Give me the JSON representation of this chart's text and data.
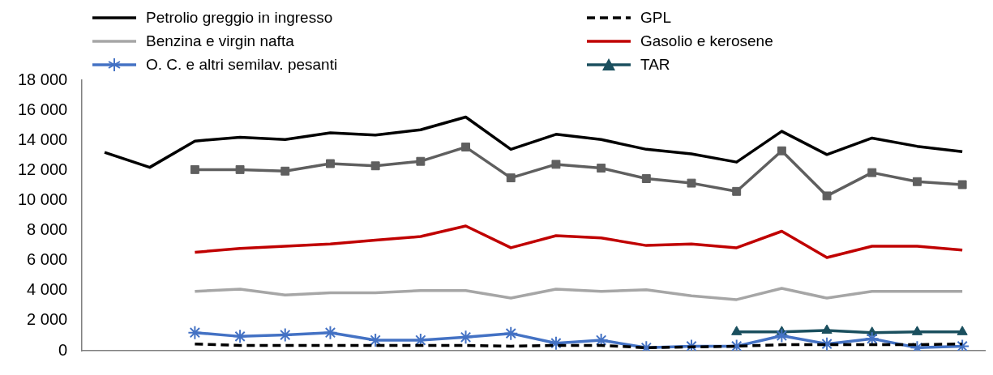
{
  "chart_data": {
    "type": "line",
    "categories": [
      null,
      null,
      null,
      null,
      null,
      null,
      null,
      null,
      null,
      null,
      null,
      null,
      null,
      null,
      null,
      null,
      null,
      null,
      null,
      null
    ],
    "series": [
      {
        "name": "Petrolio greggio in ingresso",
        "color": "#000000",
        "marker": "none",
        "values": [
          13200,
          12200,
          13950,
          14200,
          14050,
          14500,
          14350,
          14700,
          15550,
          13400,
          14400,
          14050,
          13400,
          13100,
          12550,
          14600,
          13050,
          14150,
          13600,
          13250
        ]
      },
      {
        "name": "GPL",
        "color": "#000000",
        "marker": "none",
        "line_style": "dashed",
        "values": [
          null,
          null,
          450,
          350,
          350,
          350,
          350,
          350,
          350,
          300,
          350,
          350,
          200,
          250,
          300,
          400,
          400,
          400,
          400,
          450
        ]
      },
      {
        "name": "Benzina e virgin nafta",
        "color": "#a6a6a6",
        "marker": "none",
        "values": [
          null,
          null,
          3950,
          4100,
          3700,
          3850,
          3850,
          4000,
          4000,
          3500,
          4100,
          3950,
          4050,
          3650,
          3400,
          4150,
          3500,
          3950,
          3950,
          3950
        ]
      },
      {
        "name": "Gasolio e kerosene",
        "color": "#c00000",
        "marker": "none",
        "values": [
          null,
          null,
          6550,
          6800,
          6950,
          7100,
          7350,
          7600,
          8300,
          6850,
          7650,
          7500,
          7000,
          7100,
          6850,
          7950,
          6200,
          6950,
          6950,
          6700
        ]
      },
      {
        "name": "O. C. e altri semilav. pesanti",
        "color": "#4472c4",
        "marker": "cross",
        "values": [
          null,
          null,
          1200,
          950,
          1050,
          1200,
          700,
          700,
          900,
          1150,
          500,
          700,
          200,
          300,
          300,
          1000,
          450,
          800,
          200,
          300
        ]
      },
      {
        "name": "TAR",
        "color": "#1a4f5e",
        "marker": "triangle",
        "values": [
          null,
          null,
          null,
          null,
          null,
          null,
          null,
          null,
          null,
          null,
          null,
          null,
          null,
          null,
          1250,
          1250,
          1350,
          1200,
          1250,
          1250
        ]
      },
      {
        "color": "#5f5f5f",
        "marker": "square",
        "values": [
          null,
          null,
          12050,
          12050,
          11950,
          12450,
          12300,
          12600,
          13550,
          11500,
          12400,
          12150,
          11450,
          11150,
          10600,
          13300,
          10300,
          11850,
          11250,
          11050
        ]
      }
    ],
    "ylim": [
      0,
      18000
    ],
    "yticks": [
      {
        "value": 0,
        "label": "0"
      },
      {
        "value": 2000,
        "label": "2 000"
      },
      {
        "value": 4000,
        "label": "4 000"
      },
      {
        "value": 6000,
        "label": "6 000"
      },
      {
        "value": 8000,
        "label": "8 000"
      },
      {
        "value": 10000,
        "label": "10 000"
      },
      {
        "value": 12000,
        "label": "12 000"
      },
      {
        "value": 14000,
        "label": "14 000"
      },
      {
        "value": 16000,
        "label": "16 000"
      },
      {
        "value": 18000,
        "label": "18 000"
      }
    ],
    "tick_labels": "y",
    "grid": false,
    "legend": "top"
  }
}
